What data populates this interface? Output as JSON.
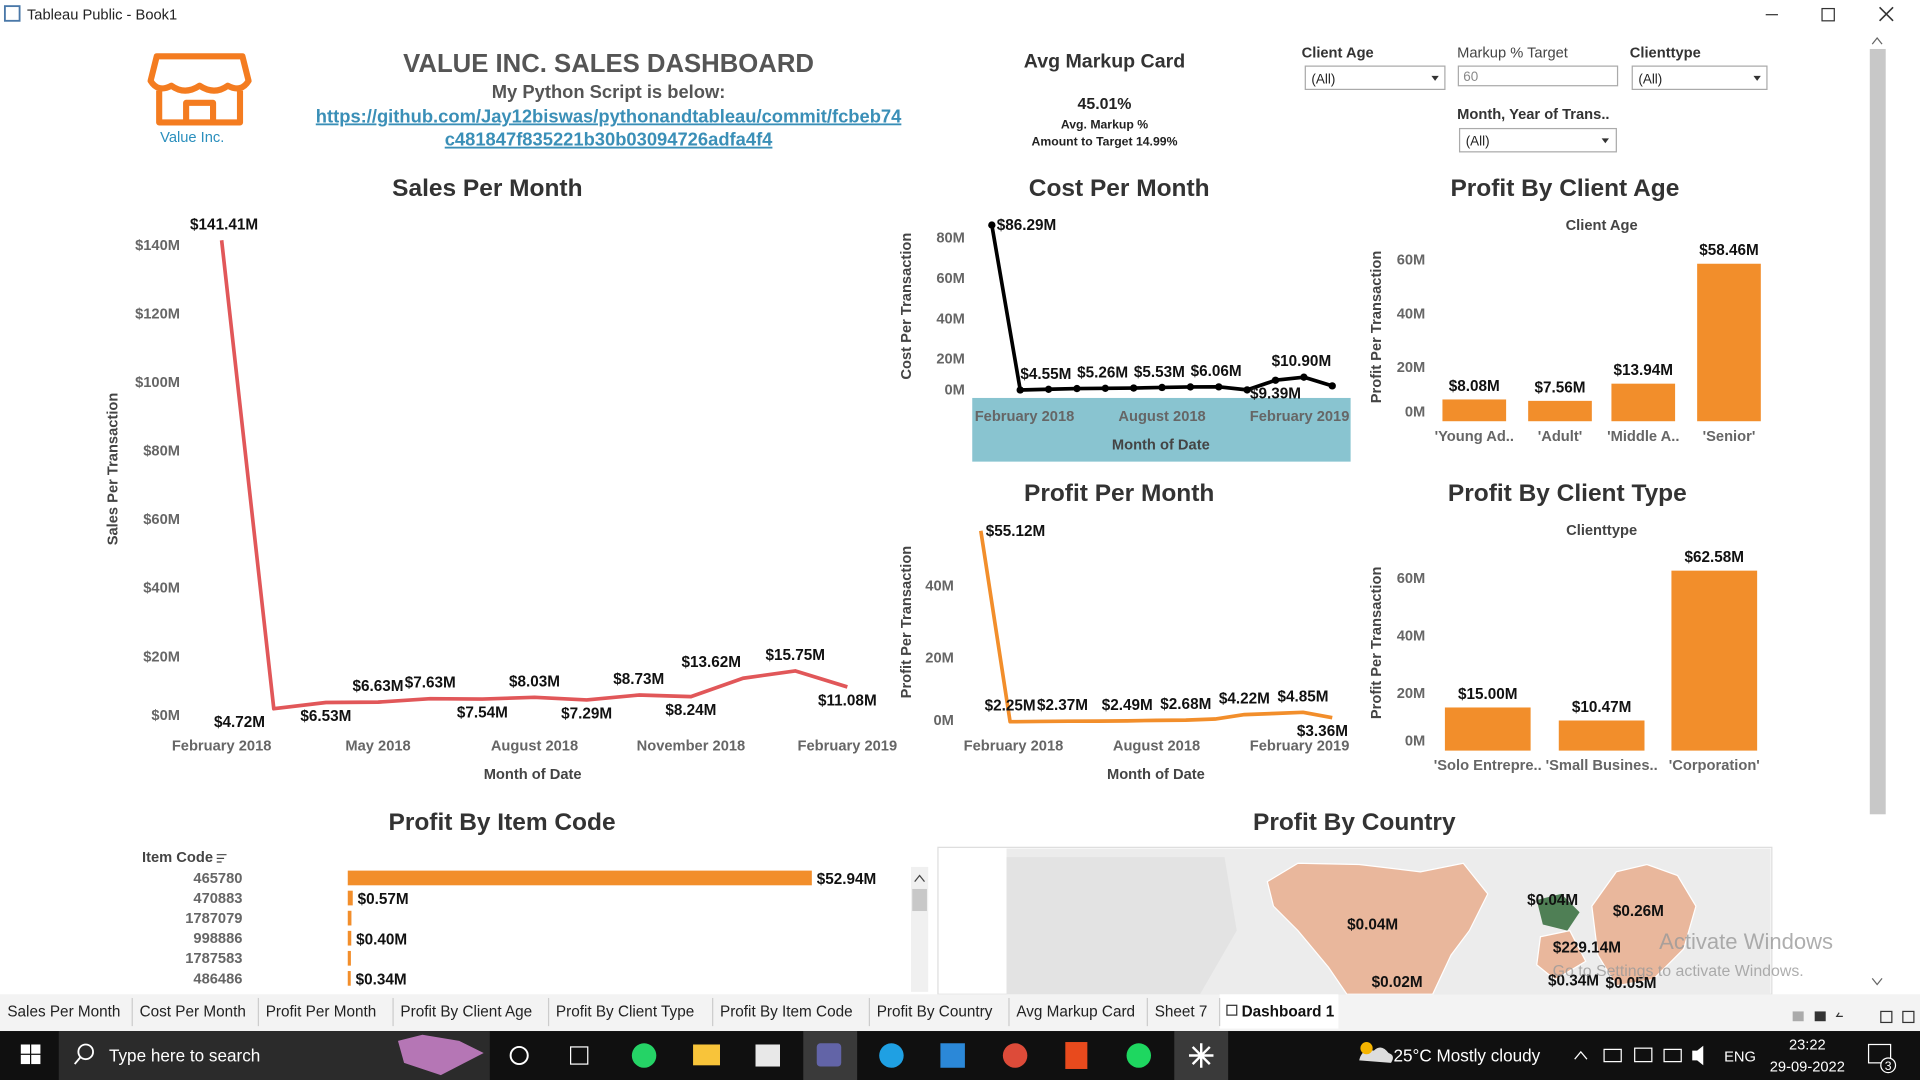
{
  "window": {
    "title": "Tableau Public - Book1"
  },
  "header": {
    "logo_text": "Value Inc.",
    "title": "VALUE INC. SALES DASHBOARD",
    "subtitle": "My Python Script is below:",
    "link_lines": [
      "https://github.com/Jay12biswas/pythonandtableau/commit/fcbeb74",
      "c481847f835221b30b03094726adfa4f4"
    ]
  },
  "markup_card": {
    "title": "Avg Markup Card",
    "value": "45.01%",
    "label": "Avg. Markup %",
    "target": "Amount to Target 14.99%"
  },
  "filters": [
    {
      "label": "Client Age",
      "value": "(All)"
    },
    {
      "label": "Markup % Target",
      "value": "60"
    },
    {
      "label": "Clienttype",
      "value": "(All)"
    },
    {
      "label": "Month, Year of Trans..",
      "value": "(All)"
    }
  ],
  "chart_data": [
    {
      "type": "line",
      "title": "Sales Per Month",
      "x_label": "Month of Date",
      "y_label": "Sales Per Transaction",
      "color": "#e15759",
      "categories": [
        "February 2018",
        null,
        null,
        "May 2018",
        null,
        null,
        "August 2018",
        null,
        null,
        "November 2018",
        null,
        null,
        "February 2019"
      ],
      "values": [
        141.41,
        4.72,
        6.53,
        6.63,
        7.63,
        7.54,
        8.03,
        7.29,
        8.73,
        8.24,
        13.62,
        15.75,
        11.08
      ],
      "value_labels": [
        "$141.41M",
        "$4.72M",
        "$6.53M",
        "$6.63M",
        "$7.63M",
        "$7.54M",
        "$8.03M",
        "$7.29M",
        "$8.73M",
        "$8.24M",
        "$13.62M",
        "$15.75M",
        "$11.08M"
      ],
      "ylim": [
        0,
        144
      ],
      "yticks": [
        {
          "value": 0,
          "label": "$0M"
        },
        {
          "value": 20,
          "label": "$20M"
        },
        {
          "value": 40,
          "label": "$40M"
        },
        {
          "value": 60,
          "label": "$60M"
        },
        {
          "value": 80,
          "label": "$80M"
        },
        {
          "value": 100,
          "label": "$100M"
        },
        {
          "value": 120,
          "label": "$120M"
        },
        {
          "value": 140,
          "label": "$140M"
        }
      ]
    },
    {
      "type": "line",
      "title": "Cost Per Month",
      "x_label": "Month of Date",
      "y_label": "Cost Per Transaction",
      "color": "#000000",
      "categories": [
        "February 2018",
        null,
        null,
        null,
        null,
        null,
        "August 2018",
        null,
        null,
        null,
        null,
        null,
        "February 2019"
      ],
      "values": [
        86.29,
        4.55,
        4.9,
        5.26,
        5.4,
        5.53,
        5.8,
        6.06,
        6.1,
        4.6,
        9.39,
        10.9,
        6.6
      ],
      "value_labels": [
        "$86.29M",
        "$4.55M",
        null,
        "$5.26M",
        null,
        "$5.53M",
        null,
        "$6.06M",
        null,
        null,
        "$9.39M",
        "$10.90M",
        null
      ],
      "ylim": [
        0,
        88
      ],
      "yticks": [
        {
          "value": 0,
          "label": "0M"
        },
        {
          "value": 20,
          "label": "20M"
        },
        {
          "value": 40,
          "label": "40M"
        },
        {
          "value": 60,
          "label": "60M"
        },
        {
          "value": 80,
          "label": "80M"
        }
      ]
    },
    {
      "type": "line",
      "title": "Profit Per Month",
      "x_label": "Month of Date",
      "y_label": "Profit Per Transaction",
      "color": "#f28e2b",
      "categories": [
        "February 2018",
        null,
        null,
        null,
        null,
        null,
        "August 2018",
        null,
        null,
        null,
        null,
        null,
        "February 2019"
      ],
      "values": [
        55.12,
        2.25,
        2.3,
        2.37,
        2.4,
        2.49,
        2.6,
        2.68,
        3.0,
        4.22,
        4.5,
        4.85,
        3.36
      ],
      "value_labels": [
        "$55.12M",
        "$2.25M",
        null,
        "$2.37M",
        null,
        "$2.49M",
        null,
        "$2.68M",
        null,
        "$4.22M",
        null,
        "$4.85M",
        "$3.36M"
      ],
      "ylim": [
        0,
        57
      ],
      "yticks": [
        {
          "value": 0,
          "label": "0M"
        },
        {
          "value": 20,
          "label": "20M"
        },
        {
          "value": 40,
          "label": "40M"
        }
      ]
    },
    {
      "type": "bar",
      "title": "Profit By Client Age",
      "header": "Client Age",
      "y_label": "Profit Per Transaction",
      "color": "#f28e2b",
      "categories": [
        "'Young Ad..",
        "'Adult'",
        "'Middle A..",
        "'Senior'"
      ],
      "values": [
        8.08,
        7.56,
        13.94,
        58.46
      ],
      "value_labels": [
        "$8.08M",
        "$7.56M",
        "$13.94M",
        "$58.46M"
      ],
      "ylim": [
        0,
        65
      ],
      "yticks": [
        {
          "value": 0,
          "label": "0M"
        },
        {
          "value": 20,
          "label": "20M"
        },
        {
          "value": 40,
          "label": "40M"
        },
        {
          "value": 60,
          "label": "60M"
        }
      ]
    },
    {
      "type": "bar",
      "title": "Profit By Client Type",
      "header": "Clienttype",
      "y_label": "Profit Per Transaction",
      "color": "#f28e2b",
      "categories": [
        "'Solo Entrepre..",
        "'Small Busines..",
        "'Corporation'"
      ],
      "values": [
        15.0,
        10.47,
        62.58
      ],
      "value_labels": [
        "$15.00M",
        "$10.47M",
        "$62.58M"
      ],
      "ylim": [
        0,
        66
      ],
      "yticks": [
        {
          "value": 0,
          "label": "0M"
        },
        {
          "value": 20,
          "label": "20M"
        },
        {
          "value": 40,
          "label": "40M"
        },
        {
          "value": 60,
          "label": "60M"
        }
      ]
    },
    {
      "type": "hbar",
      "title": "Profit By Item Code",
      "header": "Item Code",
      "color": "#f28e2b",
      "categories": [
        "465780",
        "470883",
        "1787079",
        "998886",
        "1787583",
        "486486"
      ],
      "values": [
        52.94,
        0.57,
        0.42,
        0.4,
        0.36,
        0.34
      ],
      "value_labels": [
        "$52.94M",
        "$0.57M",
        null,
        "$0.40M",
        null,
        "$0.34M"
      ]
    }
  ],
  "map": {
    "title": "Profit By Country",
    "labels": [
      "$0.04M",
      "$0.02M",
      "$0.04M",
      "$0.26M",
      "$229.14M",
      "$0.34M",
      "$0.05M"
    ]
  },
  "tabs": [
    "Sales Per Month",
    "Cost Per Month",
    "Profit Per Month",
    "Profit By Client Age",
    "Profit By Client Type",
    "Profit By Item Code",
    "Profit By Country",
    "Avg Markup Card",
    "Sheet 7",
    "Dashboard 1"
  ],
  "active_tab": 9,
  "watermark": [
    "Activate Windows",
    "Go to Settings to activate Windows."
  ],
  "taskbar": {
    "search": "Type here to search",
    "weather": "25°C  Mostly cloudy",
    "language": "ENG",
    "time": "23:22",
    "date": "29-09-2022",
    "notifications": "3"
  }
}
